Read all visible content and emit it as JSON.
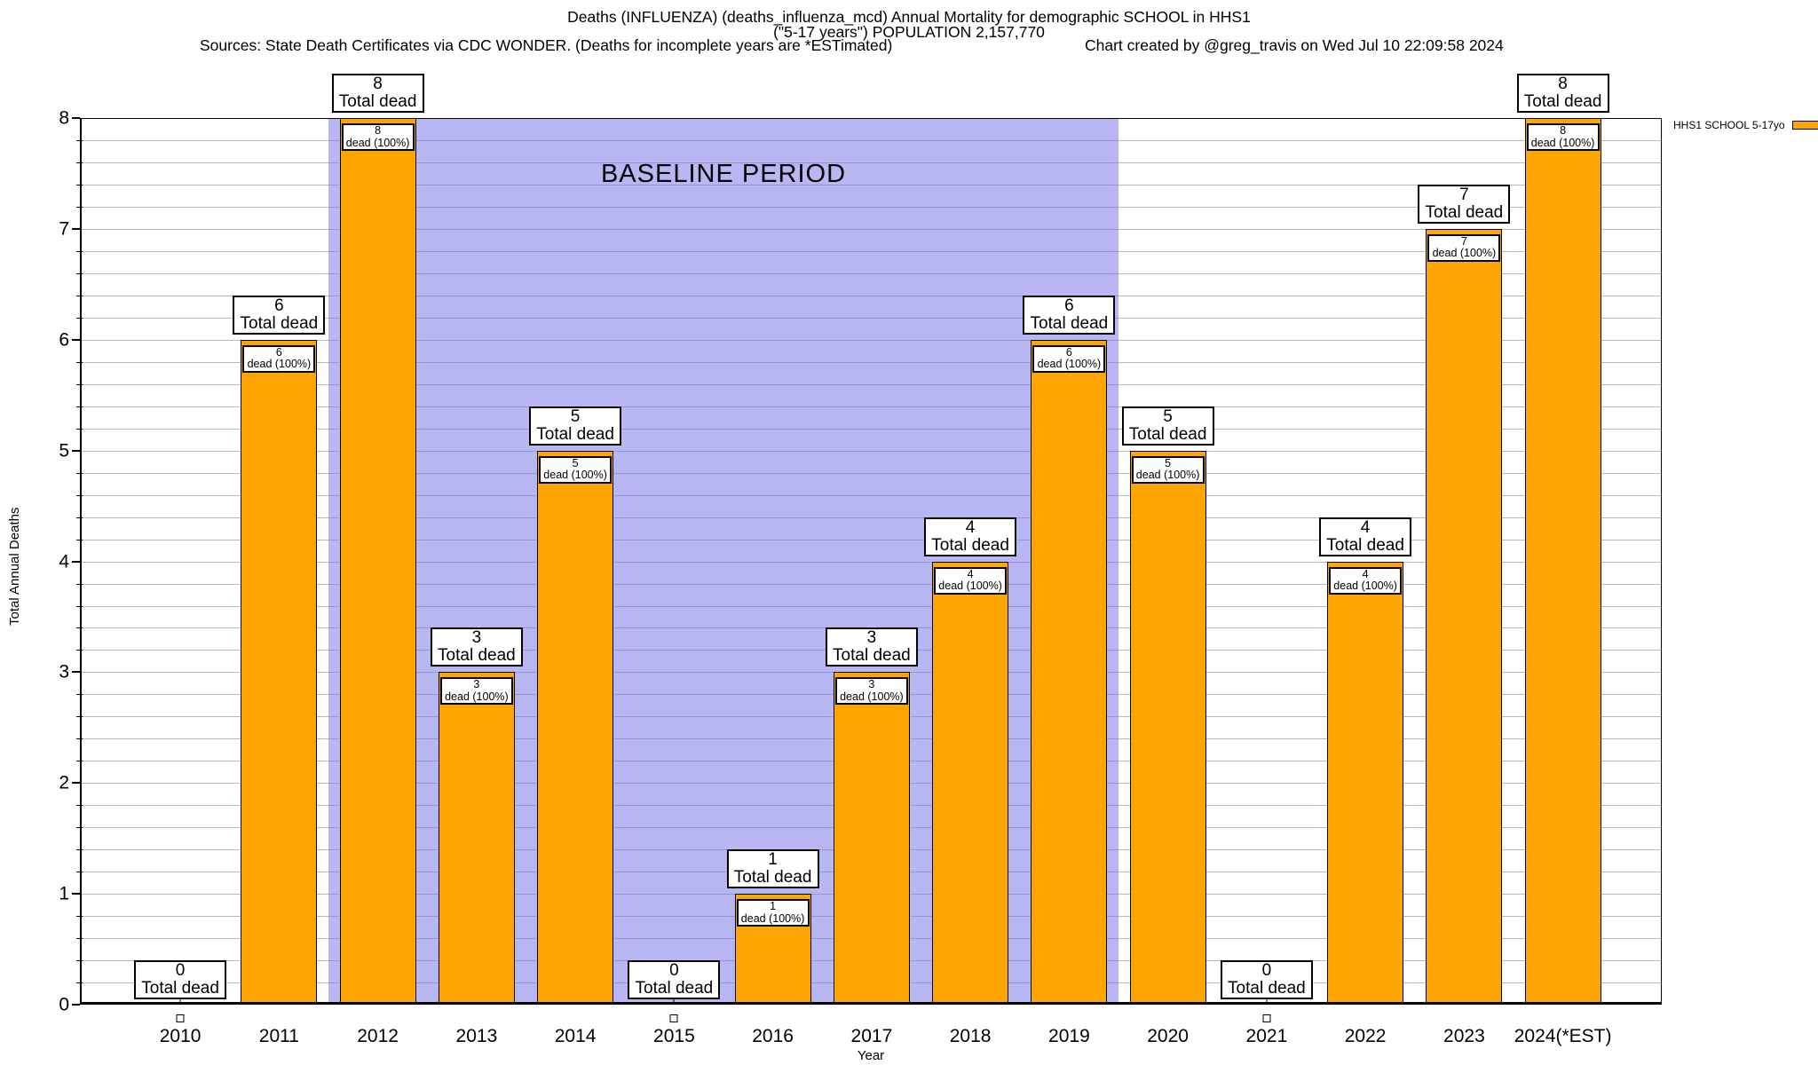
{
  "title": {
    "line1": "Deaths (INFLUENZA) (deaths_influenza_mcd) Annual Mortality for demographic SCHOOL in HHS1",
    "line2": "(\"5-17 years\") POPULATION 2,157,770",
    "sources": "Sources: State Death Certificates via CDC WONDER. (Deaths for incomplete years are *ESTimated)",
    "credit": "Chart created by @greg_travis on Wed Jul 10 22:09:58 2024"
  },
  "legend": {
    "label": "HHS1 SCHOOL 5-17yo",
    "swatch_color": "#FFA500"
  },
  "axes": {
    "y_title": "Total Annual Deaths",
    "x_title": "Year",
    "y_ticks": [
      0,
      1,
      2,
      3,
      4,
      5,
      6,
      7,
      8
    ],
    "y_minor_step": 0.2
  },
  "baseline": {
    "label": "BASELINE PERIOD",
    "start_category": "2012",
    "end_category": "2019",
    "color": "#bcb9f3"
  },
  "annotations": {
    "total_text": "Total dead",
    "dead_text": "dead (100%)"
  },
  "colors": {
    "bar": "#FFA500",
    "gridline": "#b9b9b9"
  },
  "chart_data": {
    "type": "bar",
    "title": "Deaths (INFLUENZA) Annual Mortality for demographic SCHOOL in HHS1",
    "categories": [
      "2010",
      "2011",
      "2012",
      "2013",
      "2014",
      "2015",
      "2016",
      "2017",
      "2018",
      "2019",
      "2020",
      "2021",
      "2022",
      "2023",
      "2024(*EST)"
    ],
    "values": [
      0,
      6,
      8,
      3,
      5,
      0,
      1,
      3,
      4,
      6,
      5,
      0,
      4,
      7,
      8
    ],
    "series_name": "HHS1 SCHOOL 5-17yo",
    "xlabel": "Year",
    "ylabel": "Total Annual Deaths",
    "ylim": [
      0,
      8
    ],
    "grid": true,
    "legend_position": "top-right",
    "baseline_period_categories": [
      "2012",
      "2013",
      "2014",
      "2015",
      "2016",
      "2017",
      "2018",
      "2019"
    ],
    "bar_annotation_top": "{value} Total dead",
    "bar_annotation_inner": "{value} dead (100%)"
  }
}
